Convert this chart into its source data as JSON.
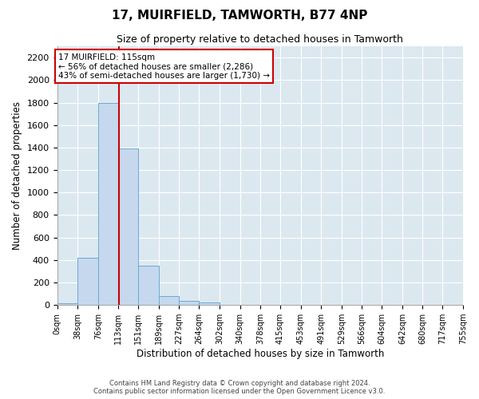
{
  "title": "17, MUIRFIELD, TAMWORTH, B77 4NP",
  "subtitle": "Size of property relative to detached houses in Tamworth",
  "xlabel": "Distribution of detached houses by size in Tamworth",
  "ylabel": "Number of detached properties",
  "bin_edges": [
    0,
    38,
    76,
    113,
    151,
    189,
    227,
    264,
    302,
    340,
    378,
    415,
    453,
    491,
    529,
    566,
    604,
    642,
    680,
    717,
    755
  ],
  "bar_heights": [
    15,
    420,
    1800,
    1390,
    350,
    80,
    35,
    20,
    5,
    5,
    0,
    0,
    0,
    0,
    0,
    0,
    0,
    0,
    0,
    0
  ],
  "bar_color": "#c5d8ee",
  "bar_edge_color": "#6aaad4",
  "property_size": 115,
  "property_label": "17 MUIRFIELD: 115sqm",
  "annotation_line1": "← 56% of detached houses are smaller (2,286)",
  "annotation_line2": "43% of semi-detached houses are larger (1,730) →",
  "annotation_box_color": "white",
  "annotation_box_edge_color": "#cc0000",
  "vline_color": "#cc0000",
  "ylim": [
    0,
    2300
  ],
  "yticks": [
    0,
    200,
    400,
    600,
    800,
    1000,
    1200,
    1400,
    1600,
    1800,
    2000,
    2200
  ],
  "background_color": "#dce8f0",
  "footer_line1": "Contains HM Land Registry data © Crown copyright and database right 2024.",
  "footer_line2": "Contains public sector information licensed under the Open Government Licence v3.0."
}
